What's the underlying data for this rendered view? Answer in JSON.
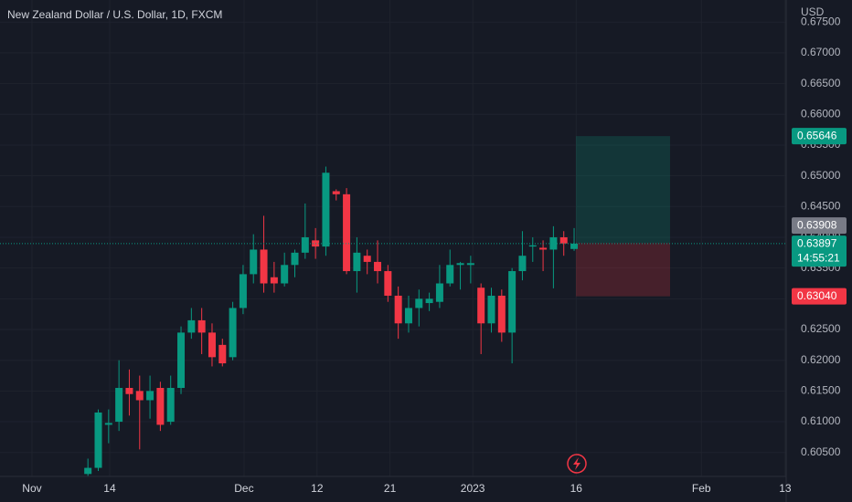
{
  "chart_data": {
    "type": "candlestick",
    "title": "New Zealand Dollar / U.S. Dollar, 1D, FXCM",
    "currency": "USD",
    "up_color": "#089981",
    "down_color": "#f23645",
    "x": [
      5,
      6,
      7,
      8,
      9,
      10,
      11,
      12,
      13,
      14,
      15,
      16,
      17,
      18,
      19,
      20,
      21,
      22,
      23,
      24,
      25,
      26,
      27,
      28,
      29,
      30,
      31,
      32,
      33,
      34,
      35,
      36,
      37,
      38,
      39,
      40,
      41,
      42,
      43,
      44,
      45,
      46,
      47,
      48,
      49,
      50,
      51,
      52
    ],
    "open": [
      0.6015,
      0.6025,
      0.6095,
      0.61,
      0.6155,
      0.615,
      0.6135,
      0.6155,
      0.61,
      0.6155,
      0.6245,
      0.6265,
      0.6245,
      0.6225,
      0.6205,
      0.6285,
      0.634,
      0.638,
      0.6335,
      0.6325,
      0.6355,
      0.6375,
      0.6395,
      0.6385,
      0.6475,
      0.647,
      0.6345,
      0.637,
      0.636,
      0.6345,
      0.6305,
      0.626,
      0.6285,
      0.6293,
      0.6295,
      0.6325,
      0.6355,
      0.6355,
      0.6318,
      0.626,
      0.6305,
      0.6245,
      0.6345,
      0.6385,
      0.6383,
      0.638,
      0.64,
      0.6381
    ],
    "high": [
      0.604,
      0.612,
      0.612,
      0.62,
      0.6185,
      0.6175,
      0.6175,
      0.6165,
      0.6175,
      0.6255,
      0.6285,
      0.6285,
      0.626,
      0.6235,
      0.6295,
      0.6355,
      0.6405,
      0.6435,
      0.636,
      0.6375,
      0.638,
      0.6455,
      0.6415,
      0.6515,
      0.6478,
      0.648,
      0.64,
      0.638,
      0.6395,
      0.6355,
      0.632,
      0.6305,
      0.6315,
      0.631,
      0.6355,
      0.638,
      0.636,
      0.637,
      0.6325,
      0.6318,
      0.6315,
      0.635,
      0.641,
      0.64,
      0.6395,
      0.6418,
      0.641,
      0.6415
    ],
    "low": [
      0.6012,
      0.602,
      0.6065,
      0.6085,
      0.611,
      0.6055,
      0.6105,
      0.6085,
      0.6095,
      0.6145,
      0.6235,
      0.621,
      0.619,
      0.619,
      0.62,
      0.6275,
      0.6325,
      0.631,
      0.631,
      0.632,
      0.6335,
      0.6365,
      0.6365,
      0.637,
      0.646,
      0.634,
      0.631,
      0.634,
      0.6325,
      0.6295,
      0.6235,
      0.6245,
      0.6255,
      0.628,
      0.6285,
      0.632,
      0.6315,
      0.6325,
      0.621,
      0.6245,
      0.623,
      0.6195,
      0.633,
      0.636,
      0.6345,
      0.6317,
      0.637,
      0.6378
    ],
    "close": [
      0.6025,
      0.6115,
      0.6098,
      0.6155,
      0.6145,
      0.6135,
      0.615,
      0.6095,
      0.6155,
      0.6245,
      0.6265,
      0.6245,
      0.6205,
      0.6195,
      0.6285,
      0.634,
      0.638,
      0.6325,
      0.6325,
      0.6355,
      0.6375,
      0.64,
      0.6385,
      0.6505,
      0.647,
      0.6345,
      0.6375,
      0.636,
      0.6345,
      0.6305,
      0.626,
      0.6285,
      0.63,
      0.63,
      0.6325,
      0.6355,
      0.6358,
      0.6358,
      0.626,
      0.6305,
      0.6245,
      0.6345,
      0.637,
      0.6387,
      0.638,
      0.64,
      0.639,
      0.63897
    ],
    "xlim": [
      -3.5,
      72.5
    ],
    "xticks": [
      {
        "value": -0.41,
        "label": "Nov"
      },
      {
        "value": 7.1,
        "label": "14"
      },
      {
        "value": 20.09,
        "label": "Dec"
      },
      {
        "value": 27.15,
        "label": "12"
      },
      {
        "value": 34.2,
        "label": "21"
      },
      {
        "value": 42.2,
        "label": "2023"
      },
      {
        "value": 52.2,
        "label": "16"
      },
      {
        "value": 64.3,
        "label": "Feb"
      },
      {
        "value": 72.4,
        "label": "13"
      }
    ],
    "ylim": [
      0.6011,
      0.6786
    ],
    "yticks": [
      {
        "value": 0.605,
        "label": "0.60500"
      },
      {
        "value": 0.61,
        "label": "0.61000"
      },
      {
        "value": 0.615,
        "label": "0.61500"
      },
      {
        "value": 0.62,
        "label": "0.62000"
      },
      {
        "value": 0.625,
        "label": "0.62500"
      },
      {
        "value": 0.63,
        "label": "0.63000"
      },
      {
        "value": 0.635,
        "label": "0.63500"
      },
      {
        "value": 0.64,
        "label": "0.64000"
      },
      {
        "value": 0.645,
        "label": "0.64500"
      },
      {
        "value": 0.65,
        "label": "0.65000"
      },
      {
        "value": 0.655,
        "label": "0.65500"
      },
      {
        "value": 0.66,
        "label": "0.66000"
      },
      {
        "value": 0.665,
        "label": "0.66500"
      },
      {
        "value": 0.67,
        "label": "0.67000"
      },
      {
        "value": 0.675,
        "label": "0.67500"
      }
    ],
    "grid": true,
    "current_price": 0.63897,
    "countdown": "14:55:21",
    "position": {
      "target": 0.65646,
      "entry": 0.63908,
      "stop": {
        "value": 0.6304,
        "label": "0.63040"
      }
    }
  }
}
